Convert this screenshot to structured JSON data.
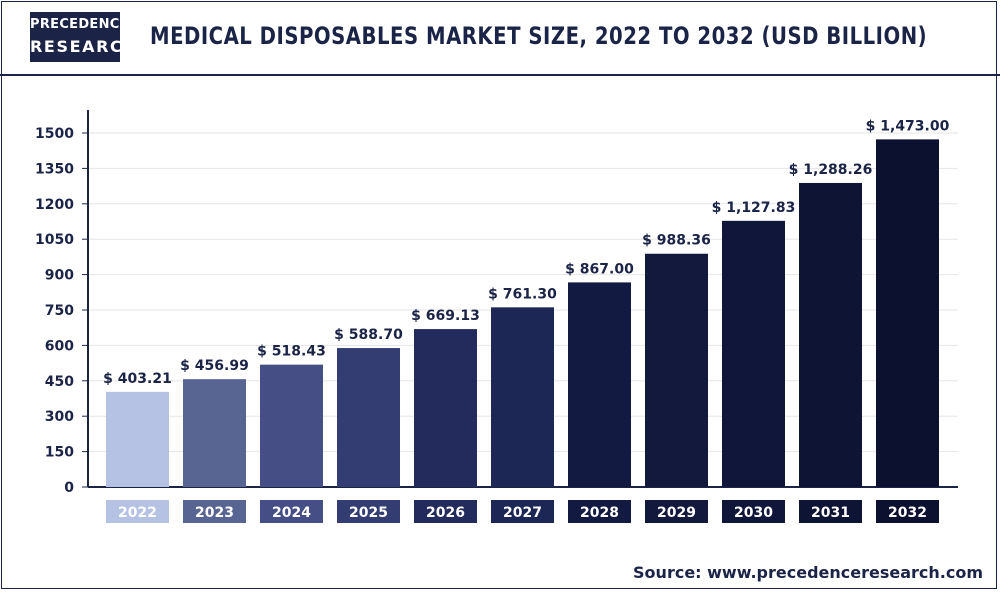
{
  "header": {
    "logo_line1": "PRECEDENCE",
    "logo_line2": "RESEARCH",
    "title": "MEDICAL DISPOSABLES MARKET SIZE, 2022 TO 2032 (USD BILLION)"
  },
  "footer": {
    "source": "Source: www.precedenceresearch.com"
  },
  "chart_data": {
    "type": "bar",
    "title": "MEDICAL DISPOSABLES MARKET SIZE, 2022 TO 2032 (USD BILLION)",
    "xlabel": "",
    "ylabel": "",
    "categories": [
      "2022",
      "2023",
      "2024",
      "2025",
      "2026",
      "2027",
      "2028",
      "2029",
      "2030",
      "2031",
      "2032"
    ],
    "values": [
      403.21,
      456.99,
      518.43,
      588.7,
      669.13,
      761.3,
      867.0,
      988.36,
      1127.83,
      1288.26,
      1473.0
    ],
    "value_labels": [
      "$ 403.21",
      "$ 456.99",
      "$ 518.43",
      "$ 588.70",
      "$ 669.13",
      "$ 761.30",
      "$ 867.00",
      "$ 988.36",
      "$ 1,127.83",
      "$ 1,288.26",
      "$ 1,473.00"
    ],
    "yticks": [
      0,
      150,
      300,
      450,
      600,
      750,
      900,
      1050,
      1200,
      1350,
      1500
    ],
    "ylim": [
      0,
      1560
    ],
    "grid": true,
    "legend": "none",
    "colors": [
      "#b6c2e3",
      "#586592",
      "#454f85",
      "#333d72",
      "#232a5c",
      "#1c2755",
      "#131a42",
      "#12193d",
      "#10163a",
      "#0e1433",
      "#0c1130"
    ]
  }
}
